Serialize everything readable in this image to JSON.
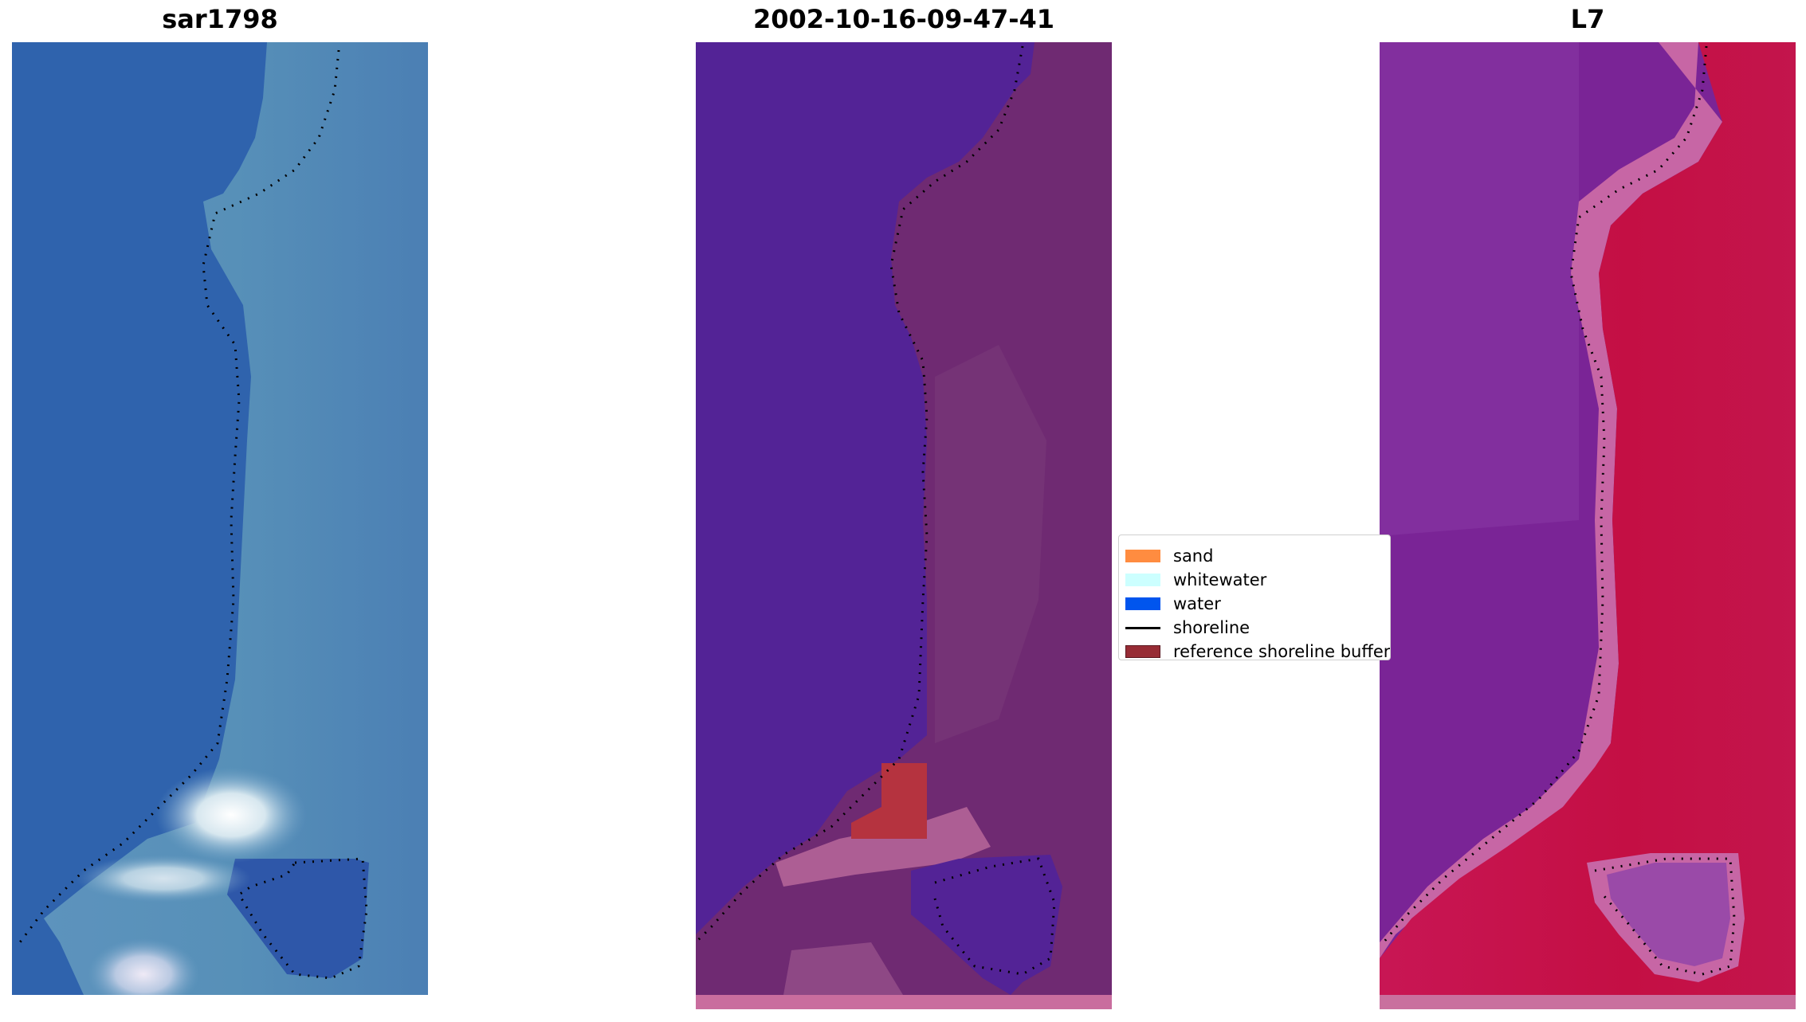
{
  "panels": [
    {
      "title": "sar1798",
      "base": "#2f63ad",
      "strip": "",
      "view": "rgb"
    },
    {
      "title": "2002-10-16-09-47-41",
      "base": "#532396",
      "strip": "#c96d9e",
      "view": "classified"
    },
    {
      "title": "L7",
      "base": "#7a2496",
      "strip": "#c9709e",
      "view": "index"
    }
  ],
  "legend": {
    "items": [
      {
        "label": "sand",
        "kind": "swatch",
        "color": "#ff8c40"
      },
      {
        "label": "whitewater",
        "kind": "swatch",
        "color": "#ccffff"
      },
      {
        "label": "water",
        "kind": "swatch",
        "color": "#0055ee"
      },
      {
        "label": "shoreline",
        "kind": "line",
        "color": "#000000"
      },
      {
        "label": "reference shoreline buffer",
        "kind": "swatch",
        "color": "#972c35"
      }
    ]
  },
  "colors": {
    "land_classified": "#6f2a72",
    "land_index": "#c2124a",
    "sand_patch": "#b5333f",
    "water_rgb": "#2f63ad",
    "land_rgb": "#4d82b8",
    "whitewater_rgb": "#e8eef5"
  }
}
